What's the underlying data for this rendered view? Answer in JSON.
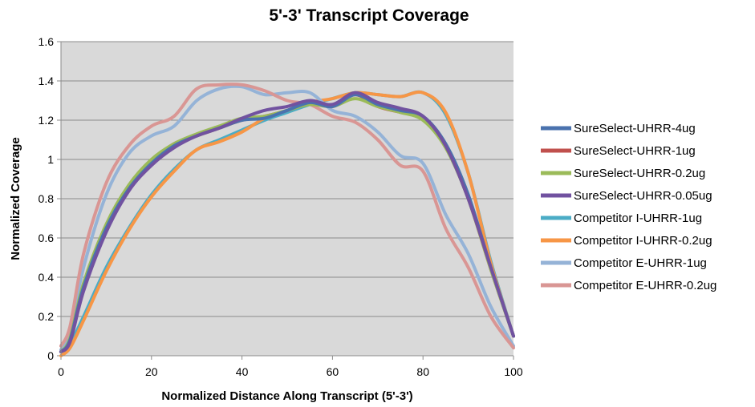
{
  "chart_data": {
    "type": "line",
    "title": "5'-3' Transcript Coverage",
    "xlabel": "Normalized Distance Along Transcript (5'-3')",
    "ylabel": "Normalized  Coverage",
    "xlim": [
      0,
      100
    ],
    "ylim": [
      0,
      1.6
    ],
    "x_ticks": [
      "0",
      "20",
      "40",
      "60",
      "80",
      "100"
    ],
    "y_ticks": [
      "0",
      "0.2",
      "0.4",
      "0.6",
      "0.8",
      "1",
      "1.2",
      "1.4",
      "1.6"
    ],
    "grid": true,
    "plot_background": "#d9d9d9",
    "legend_position": "right",
    "x": [
      0,
      2,
      5,
      10,
      15,
      20,
      25,
      30,
      35,
      40,
      45,
      50,
      55,
      60,
      65,
      70,
      75,
      80,
      85,
      90,
      95,
      100
    ],
    "series": [
      {
        "name": "SureSelect-UHRR-4ug",
        "color": "#4a72ae",
        "values": [
          0.02,
          0.08,
          0.35,
          0.65,
          0.85,
          0.98,
          1.07,
          1.12,
          1.16,
          1.2,
          1.21,
          1.25,
          1.29,
          1.27,
          1.33,
          1.28,
          1.25,
          1.22,
          1.08,
          0.82,
          0.45,
          0.1
        ]
      },
      {
        "name": "SureSelect-UHRR-1ug",
        "color": "#c0504d",
        "values": [
          0.02,
          0.08,
          0.36,
          0.66,
          0.86,
          0.99,
          1.08,
          1.12,
          1.16,
          1.2,
          1.22,
          1.25,
          1.29,
          1.27,
          1.33,
          1.27,
          1.24,
          1.21,
          1.07,
          0.8,
          0.44,
          0.1
        ]
      },
      {
        "name": "SureSelect-UHRR-0.2ug",
        "color": "#9bbb59",
        "values": [
          0.02,
          0.09,
          0.37,
          0.67,
          0.87,
          1.0,
          1.08,
          1.13,
          1.17,
          1.21,
          1.22,
          1.25,
          1.28,
          1.27,
          1.31,
          1.27,
          1.24,
          1.2,
          1.06,
          0.8,
          0.44,
          0.1
        ]
      },
      {
        "name": "SureSelect-UHRR-0.05ug",
        "color": "#7152a0",
        "values": [
          0.02,
          0.07,
          0.33,
          0.63,
          0.84,
          0.97,
          1.06,
          1.12,
          1.16,
          1.21,
          1.25,
          1.27,
          1.3,
          1.28,
          1.34,
          1.29,
          1.26,
          1.22,
          1.07,
          0.8,
          0.45,
          0.1
        ]
      },
      {
        "name": "Competitor I-UHRR-1ug",
        "color": "#4bacc6",
        "values": [
          0.02,
          0.06,
          0.2,
          0.45,
          0.65,
          0.82,
          0.95,
          1.05,
          1.1,
          1.15,
          1.2,
          1.24,
          1.28,
          1.31,
          1.34,
          1.33,
          1.32,
          1.34,
          1.23,
          0.93,
          0.48,
          0.1
        ]
      },
      {
        "name": "Competitor I-UHRR-0.2ug",
        "color": "#f79646",
        "values": [
          0.0,
          0.04,
          0.18,
          0.43,
          0.64,
          0.81,
          0.94,
          1.05,
          1.09,
          1.14,
          1.21,
          1.25,
          1.29,
          1.31,
          1.34,
          1.33,
          1.32,
          1.34,
          1.24,
          0.93,
          0.47,
          0.1
        ]
      },
      {
        "name": "Competitor E-UHRR-1ug",
        "color": "#95b3d7",
        "values": [
          0.03,
          0.12,
          0.45,
          0.82,
          1.03,
          1.12,
          1.17,
          1.3,
          1.36,
          1.37,
          1.33,
          1.34,
          1.34,
          1.25,
          1.22,
          1.14,
          1.02,
          0.98,
          0.72,
          0.52,
          0.25,
          0.05
        ]
      },
      {
        "name": "Competitor E-UHRR-0.2ug",
        "color": "#d99694",
        "values": [
          0.05,
          0.15,
          0.52,
          0.88,
          1.07,
          1.17,
          1.22,
          1.36,
          1.38,
          1.38,
          1.35,
          1.3,
          1.28,
          1.22,
          1.19,
          1.1,
          0.97,
          0.94,
          0.65,
          0.45,
          0.2,
          0.04
        ]
      }
    ]
  }
}
